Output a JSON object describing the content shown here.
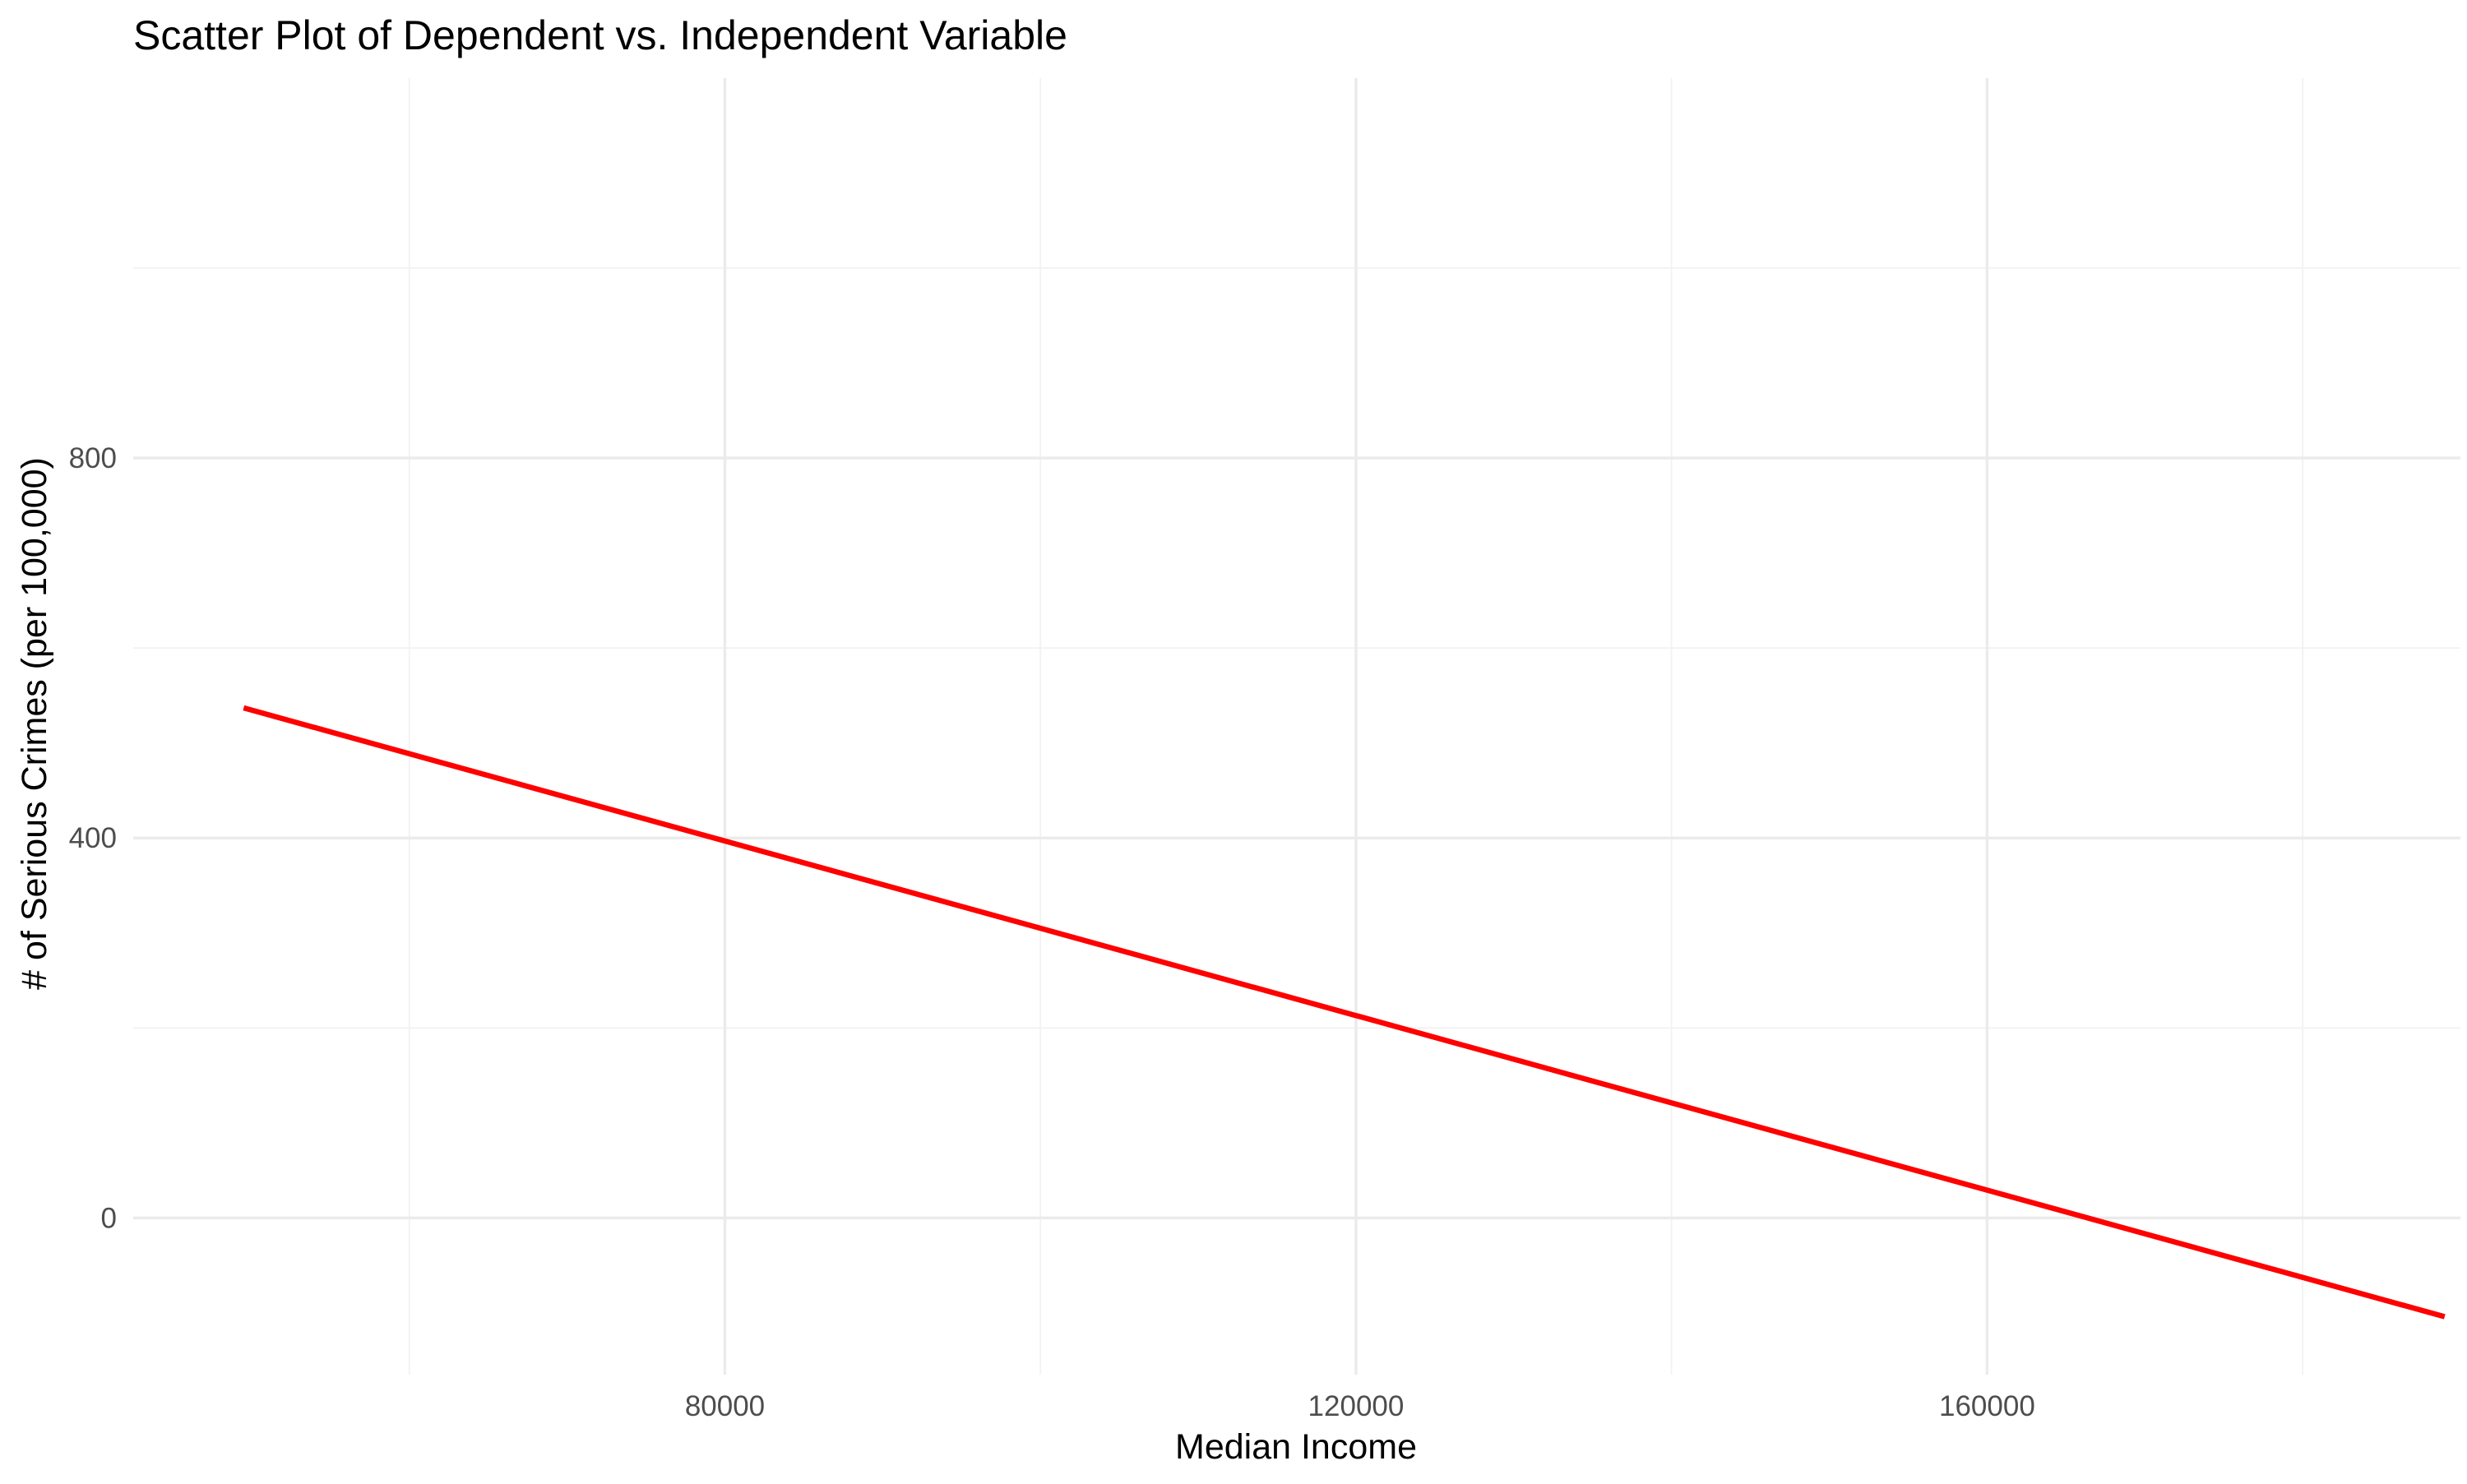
{
  "chart_data": {
    "type": "scatter",
    "title": "Scatter Plot of Dependent vs. Independent Variable",
    "xlabel": "Median Income",
    "ylabel": "# of Serious Crimes (per 100,000)",
    "xlim": [
      42500,
      190000
    ],
    "ylim": [
      -165,
      1200
    ],
    "x_ticks": [
      80000,
      120000,
      160000
    ],
    "x_tick_labels": [
      "80000",
      "120000",
      "160000"
    ],
    "x_minor_ticks": [
      60000,
      100000,
      140000,
      180000
    ],
    "y_ticks": [
      0,
      400,
      800
    ],
    "y_tick_labels": [
      "0",
      "400",
      "800"
    ],
    "y_minor_ticks": [
      200,
      600,
      1000
    ],
    "grid": true,
    "points": {
      "color": "#ffffff",
      "x": [],
      "y": []
    },
    "series": [
      {
        "kind": "regression_line",
        "color": "#ff0000",
        "x": [
          49500,
          189000
        ],
        "y": [
          537,
          -104
        ]
      }
    ]
  }
}
